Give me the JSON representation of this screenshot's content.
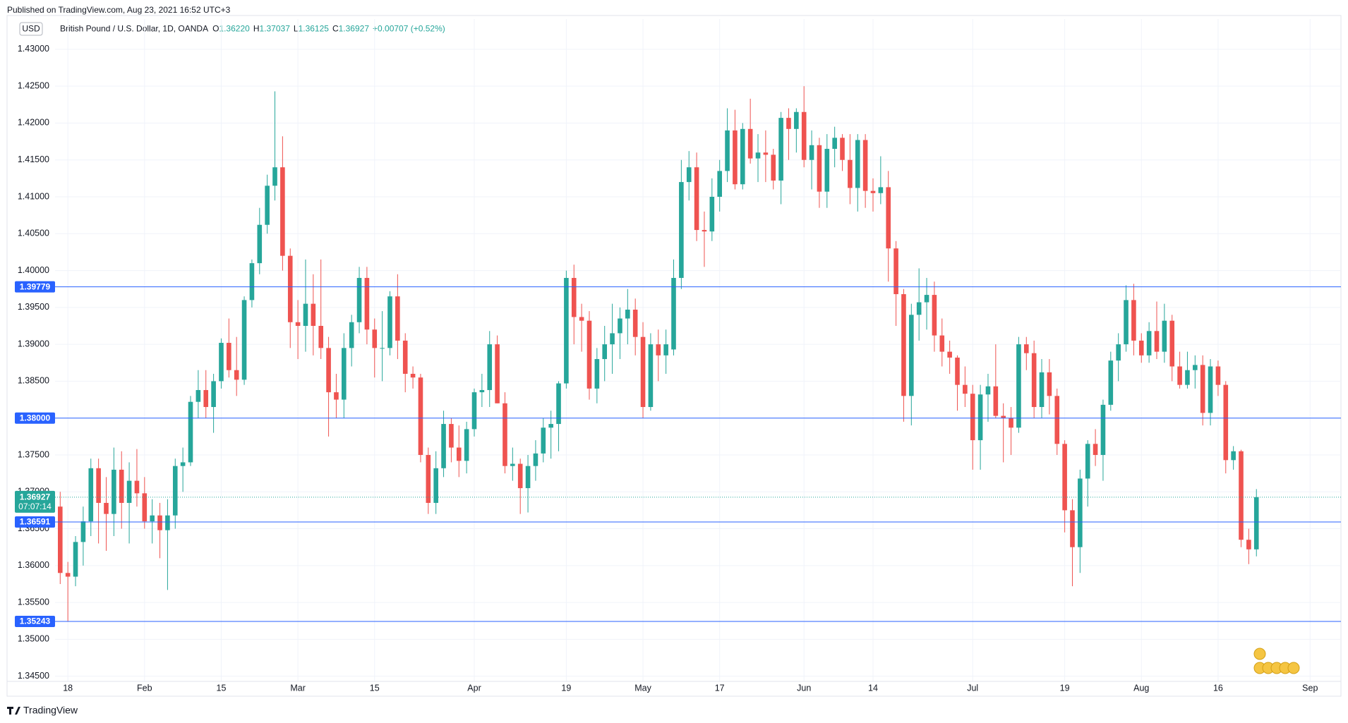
{
  "header": {
    "published": "Published on TradingView.com, Aug 23, 2021 16:52 UTC+3",
    "footer": "TradingView"
  },
  "chart_data": {
    "type": "candlestick",
    "currency": "USD",
    "title": "British Pound / U.S. Dollar, 1D, OANDA",
    "ohlc": [
      {
        "key": "O",
        "value": "1.36220"
      },
      {
        "key": "H",
        "value": "1.37037"
      },
      {
        "key": "L",
        "value": "1.36125"
      },
      {
        "key": "C",
        "value": "1.36927"
      }
    ],
    "change": "+0.00707 (+0.52%)",
    "up_color": "#26a69a",
    "down_color": "#ef5350",
    "level_color": "#2962ff",
    "open": [
      1.368,
      1.359,
      1.3585,
      1.3632,
      1.366,
      1.3732,
      1.3685,
      1.367,
      1.373,
      1.3685,
      1.3715,
      1.3698,
      1.366,
      1.3668,
      1.3648,
      1.3668,
      1.3735,
      1.374,
      1.3822,
      1.3838,
      1.3815,
      1.385,
      1.3902,
      1.3865,
      1.3852,
      1.396,
      1.401,
      1.4062,
      1.4115,
      1.414,
      1.402,
      1.393,
      1.3925,
      1.3955,
      1.3925,
      1.3895,
      1.3835,
      1.3825,
      1.3895,
      1.393,
      1.399,
      1.392,
      1.3895,
      1.3895,
      1.3965,
      1.3905,
      1.386,
      1.3855,
      1.375,
      1.3685,
      1.3732,
      1.3792,
      1.376,
      1.3742,
      1.3785,
      1.3835,
      1.3838,
      1.39,
      1.382,
      1.3735,
      1.3738,
      1.3705,
      1.3735,
      1.3752,
      1.3787,
      1.3792,
      1.3847,
      1.399,
      1.3937,
      1.3932,
      1.384,
      1.388,
      1.39,
      1.3915,
      1.3935,
      1.3947,
      1.391,
      1.3815,
      1.39,
      1.3885,
      1.3893,
      1.399,
      1.412,
      1.414,
      1.4055,
      1.4053,
      1.41,
      1.4135,
      1.419,
      1.4117,
      1.4192,
      1.4152,
      1.416,
      1.4157,
      1.4122,
      1.4207,
      1.4192,
      1.4215,
      1.415,
      1.417,
      1.4107,
      1.4165,
      1.418,
      1.415,
      1.4112,
      1.4177,
      1.4108,
      1.4105,
      1.4113,
      1.403,
      1.3968,
      1.383,
      1.394,
      1.3957,
      1.3967,
      1.3912,
      1.389,
      1.3882,
      1.3845,
      1.3833,
      1.377,
      1.3832,
      1.3843,
      1.3803,
      1.38,
      1.3787,
      1.39,
      1.3888,
      1.3815,
      1.3862,
      1.383,
      1.3765,
      1.3675,
      1.3625,
      1.3718,
      1.3765,
      1.375,
      1.3818,
      1.3878,
      1.39,
      1.396,
      1.3905,
      1.3885,
      1.3918,
      1.389,
      1.3932,
      1.387,
      1.3845,
      1.3865,
      1.3872,
      1.3807,
      1.387,
      1.3845,
      1.3743,
      1.3755,
      1.3635,
      1.3622
    ],
    "high": [
      1.37,
      1.3605,
      1.364,
      1.368,
      1.3745,
      1.3745,
      1.372,
      1.376,
      1.3755,
      1.374,
      1.3758,
      1.372,
      1.369,
      1.3685,
      1.369,
      1.3745,
      1.376,
      1.383,
      1.3865,
      1.3865,
      1.386,
      1.3908,
      1.3935,
      1.391,
      1.3965,
      1.4015,
      1.4085,
      1.413,
      1.4243,
      1.4182,
      1.403,
      1.396,
      1.4015,
      1.3995,
      1.4015,
      1.391,
      1.386,
      1.3915,
      1.394,
      1.4005,
      1.4005,
      1.3935,
      1.3945,
      1.3972,
      1.3995,
      1.3915,
      1.387,
      1.386,
      1.376,
      1.3755,
      1.381,
      1.38,
      1.379,
      1.3795,
      1.384,
      1.386,
      1.3918,
      1.3912,
      1.3835,
      1.376,
      1.3745,
      1.375,
      1.377,
      1.38,
      1.381,
      1.385,
      1.4,
      1.4008,
      1.3955,
      1.3945,
      1.3895,
      1.3925,
      1.3955,
      1.395,
      1.3975,
      1.3962,
      1.393,
      1.3915,
      1.392,
      1.392,
      1.4015,
      1.415,
      1.4162,
      1.416,
      1.408,
      1.4125,
      1.415,
      1.422,
      1.4218,
      1.42,
      1.4233,
      1.4185,
      1.419,
      1.4165,
      1.4215,
      1.422,
      1.422,
      1.425,
      1.419,
      1.418,
      1.4185,
      1.4195,
      1.4185,
      1.4185,
      1.4185,
      1.4185,
      1.4125,
      1.4155,
      1.4135,
      1.404,
      1.3975,
      1.3955,
      1.4003,
      1.399,
      1.3985,
      1.3935,
      1.3905,
      1.3885,
      1.387,
      1.3845,
      1.3845,
      1.386,
      1.39,
      1.382,
      1.3815,
      1.391,
      1.391,
      1.3905,
      1.388,
      1.388,
      1.384,
      1.377,
      1.369,
      1.373,
      1.377,
      1.3785,
      1.3825,
      1.389,
      1.3915,
      1.398,
      1.3982,
      1.3915,
      1.393,
      1.3958,
      1.3955,
      1.394,
      1.389,
      1.389,
      1.3885,
      1.3885,
      1.388,
      1.3878,
      1.385,
      1.3762,
      1.3757,
      1.365,
      1.37037
    ],
    "low": [
      1.3575,
      1.3524,
      1.3572,
      1.36,
      1.364,
      1.363,
      1.362,
      1.364,
      1.365,
      1.363,
      1.368,
      1.365,
      1.363,
      1.361,
      1.3567,
      1.365,
      1.37,
      1.3735,
      1.38,
      1.38,
      1.378,
      1.384,
      1.3855,
      1.383,
      1.3845,
      1.395,
      1.3995,
      1.405,
      1.4095,
      1.4,
      1.3895,
      1.388,
      1.389,
      1.3885,
      1.388,
      1.3775,
      1.38,
      1.38,
      1.387,
      1.3915,
      1.39,
      1.3855,
      1.385,
      1.3885,
      1.388,
      1.3835,
      1.384,
      1.374,
      1.367,
      1.367,
      1.372,
      1.374,
      1.372,
      1.3725,
      1.3775,
      1.3815,
      1.3815,
      1.382,
      1.3725,
      1.3715,
      1.367,
      1.3672,
      1.3715,
      1.374,
      1.3745,
      1.3755,
      1.384,
      1.39,
      1.389,
      1.3825,
      1.382,
      1.385,
      1.386,
      1.388,
      1.39,
      1.3885,
      1.38,
      1.381,
      1.385,
      1.386,
      1.3885,
      1.3975,
      1.4095,
      1.404,
      1.4005,
      1.404,
      1.408,
      1.412,
      1.411,
      1.411,
      1.4145,
      1.412,
      1.412,
      1.411,
      1.409,
      1.415,
      1.416,
      1.414,
      1.411,
      1.4085,
      1.4085,
      1.414,
      1.4135,
      1.409,
      1.408,
      1.4085,
      1.408,
      1.409,
      1.3985,
      1.3925,
      1.3795,
      1.379,
      1.3905,
      1.392,
      1.389,
      1.387,
      1.386,
      1.381,
      1.3815,
      1.373,
      1.373,
      1.3795,
      1.38,
      1.374,
      1.375,
      1.378,
      1.3865,
      1.38,
      1.38,
      1.3805,
      1.375,
      1.3645,
      1.3572,
      1.359,
      1.368,
      1.3735,
      1.3715,
      1.381,
      1.385,
      1.389,
      1.3885,
      1.3875,
      1.3875,
      1.388,
      1.3875,
      1.385,
      1.384,
      1.384,
      1.384,
      1.379,
      1.379,
      1.383,
      1.3725,
      1.373,
      1.3625,
      1.3602,
      1.36125
    ],
    "close": [
      1.359,
      1.3585,
      1.3632,
      1.366,
      1.3732,
      1.3685,
      1.367,
      1.373,
      1.3685,
      1.3715,
      1.3698,
      1.366,
      1.3668,
      1.3648,
      1.3668,
      1.3735,
      1.374,
      1.3822,
      1.3838,
      1.3815,
      1.385,
      1.3902,
      1.3865,
      1.3852,
      1.396,
      1.401,
      1.4062,
      1.4115,
      1.414,
      1.402,
      1.393,
      1.3925,
      1.3955,
      1.3925,
      1.3895,
      1.3835,
      1.3825,
      1.3895,
      1.393,
      1.399,
      1.392,
      1.3895,
      1.3895,
      1.3965,
      1.3905,
      1.386,
      1.3855,
      1.375,
      1.3685,
      1.3732,
      1.3792,
      1.376,
      1.3742,
      1.3785,
      1.3835,
      1.3838,
      1.39,
      1.382,
      1.3735,
      1.3738,
      1.3705,
      1.3735,
      1.3752,
      1.3787,
      1.3792,
      1.3847,
      1.399,
      1.3937,
      1.3932,
      1.384,
      1.388,
      1.39,
      1.3915,
      1.3935,
      1.3947,
      1.391,
      1.3815,
      1.39,
      1.3885,
      1.39,
      1.399,
      1.412,
      1.414,
      1.4055,
      1.4053,
      1.41,
      1.4135,
      1.419,
      1.4117,
      1.4192,
      1.4152,
      1.416,
      1.4157,
      1.4122,
      1.4207,
      1.4192,
      1.4215,
      1.415,
      1.417,
      1.4107,
      1.4165,
      1.418,
      1.415,
      1.4112,
      1.4177,
      1.4108,
      1.4105,
      1.4113,
      1.403,
      1.3968,
      1.383,
      1.394,
      1.3957,
      1.3967,
      1.3912,
      1.389,
      1.3882,
      1.3845,
      1.3833,
      1.377,
      1.3832,
      1.3843,
      1.3803,
      1.38,
      1.3787,
      1.39,
      1.3888,
      1.3815,
      1.3862,
      1.383,
      1.3765,
      1.3675,
      1.3625,
      1.3718,
      1.3765,
      1.375,
      1.3818,
      1.3878,
      1.39,
      1.396,
      1.3905,
      1.3885,
      1.3918,
      1.389,
      1.3932,
      1.387,
      1.3845,
      1.3865,
      1.3872,
      1.3807,
      1.387,
      1.3845,
      1.3743,
      1.3755,
      1.3635,
      1.3622,
      1.36927
    ],
    "xticks": [
      {
        "value": 1,
        "label": "18"
      },
      {
        "value": 11,
        "label": "Feb"
      },
      {
        "value": 21,
        "label": "15"
      },
      {
        "value": 31,
        "label": "Mar"
      },
      {
        "value": 41,
        "label": "15"
      },
      {
        "value": 54,
        "label": "Apr"
      },
      {
        "value": 66,
        "label": "19"
      },
      {
        "value": 76,
        "label": "May"
      },
      {
        "value": 86,
        "label": "17"
      },
      {
        "value": 97,
        "label": "Jun"
      },
      {
        "value": 106,
        "label": "14"
      },
      {
        "value": 119,
        "label": "Jul"
      },
      {
        "value": 131,
        "label": "19"
      },
      {
        "value": 141,
        "label": "Aug"
      },
      {
        "value": 151,
        "label": "16"
      },
      {
        "value": 163,
        "label": "Sep"
      }
    ],
    "ylim": [
      1.3443,
      1.4341
    ],
    "yticks": [
      {
        "value": 1.345,
        "label": "1.34500"
      },
      {
        "value": 1.35,
        "label": "1.35000"
      },
      {
        "value": 1.355,
        "label": "1.35500"
      },
      {
        "value": 1.36,
        "label": "1.36000"
      },
      {
        "value": 1.365,
        "label": "1.36500"
      },
      {
        "value": 1.37,
        "label": "1.37000"
      },
      {
        "value": 1.375,
        "label": "1.37500"
      },
      {
        "value": 1.38,
        "label": "1.38000"
      },
      {
        "value": 1.385,
        "label": "1.38500"
      },
      {
        "value": 1.39,
        "label": "1.39000"
      },
      {
        "value": 1.395,
        "label": "1.39500"
      },
      {
        "value": 1.4,
        "label": "1.40000"
      },
      {
        "value": 1.405,
        "label": "1.40500"
      },
      {
        "value": 1.41,
        "label": "1.41000"
      },
      {
        "value": 1.415,
        "label": "1.41500"
      },
      {
        "value": 1.42,
        "label": "1.42000"
      },
      {
        "value": 1.425,
        "label": "1.42500"
      },
      {
        "value": 1.43,
        "label": "1.43000"
      }
    ],
    "grid": true,
    "levels": [
      {
        "value": 1.39779,
        "label": "1.39779"
      },
      {
        "value": 1.38,
        "label": "1.38000"
      },
      {
        "value": 1.36591,
        "label": "1.36591"
      },
      {
        "value": 1.35243,
        "label": "1.35243"
      }
    ],
    "last_price": {
      "value": 1.36927,
      "label": "1.36927",
      "countdown": "07:07:14"
    }
  }
}
